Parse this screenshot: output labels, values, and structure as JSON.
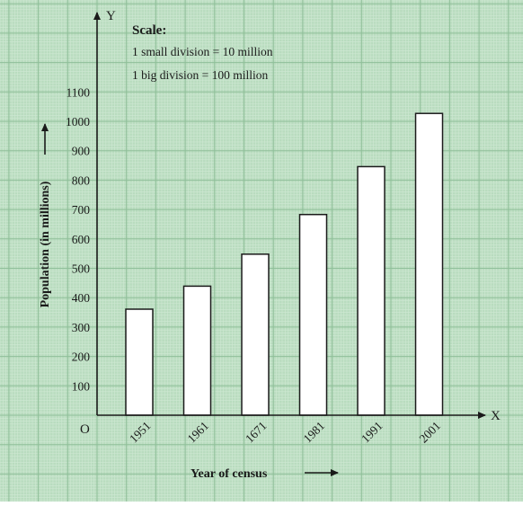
{
  "colors": {
    "grid_background": "#b9dcbf",
    "minor_grid": "#cfe8d3",
    "major_grid": "#8fbf99",
    "bar_fill": "#ffffff",
    "bar_stroke": "#1a1a1a",
    "axis": "#1a1a1a"
  },
  "scale_box": {
    "title": "Scale:",
    "line1": "1 small division = 10 million",
    "line2": "1 big division = 100 million"
  },
  "axes": {
    "origin_label": "O",
    "x_letter": "X",
    "y_letter": "Y"
  },
  "chart_data": {
    "type": "bar",
    "title": "",
    "xlabel": "Year of census",
    "ylabel": "Population (in millions)",
    "categories": [
      "1951",
      "1961",
      "1671",
      "1981",
      "1991",
      "2001"
    ],
    "values": [
      361,
      439,
      548,
      683,
      846,
      1027
    ],
    "ylim": [
      0,
      1100
    ],
    "yticks": [
      100,
      200,
      300,
      400,
      500,
      600,
      700,
      800,
      900,
      1000,
      1100
    ],
    "grid": true,
    "legend": "none"
  }
}
